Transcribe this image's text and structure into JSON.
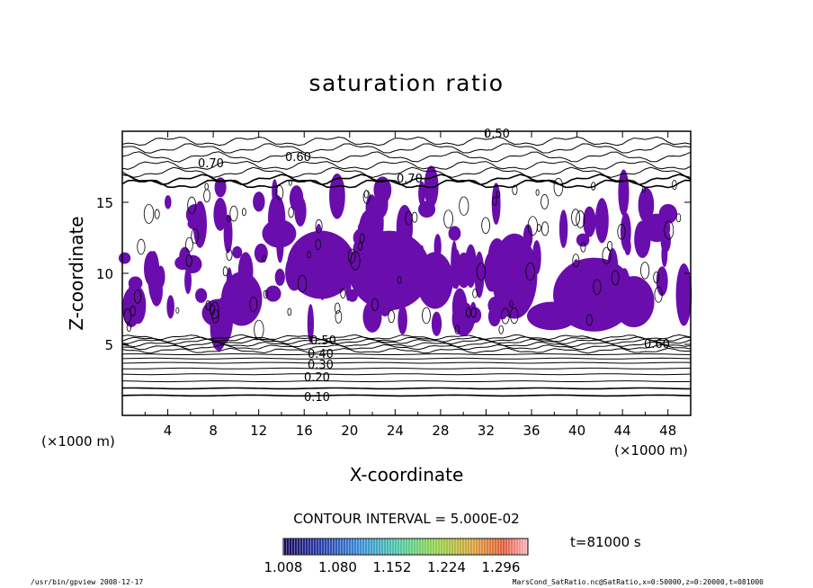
{
  "chart_data": {
    "type": "heatmap",
    "title": "saturation ratio",
    "xlabel": "X-coordinate",
    "ylabel": "Z-coordinate",
    "x_unit": "(×1000 m)",
    "y_unit": "(×1000 m)",
    "xlim": [
      0,
      50
    ],
    "ylim": [
      0,
      20
    ],
    "x_ticks": [
      "4",
      "8",
      "12",
      "16",
      "20",
      "24",
      "28",
      "32",
      "36",
      "40",
      "44",
      "48"
    ],
    "y_ticks": [
      "5",
      "10",
      "15"
    ],
    "contour_interval": "CONTOUR INTERVAL = 5.000E-02",
    "contour_labels": [
      "0.50",
      "0.60",
      "0.70",
      "0.70",
      "0.60",
      "0.50",
      "0.40",
      "0.30",
      "0.20",
      "0.10"
    ],
    "colorbar_ticks": [
      "1.008",
      "1.080",
      "1.152",
      "1.224",
      "1.296"
    ],
    "colorbar_range": [
      1.008,
      1.296
    ],
    "time_label": "t=81000 s",
    "fill_color": "#6a0dad",
    "grid": false
  },
  "footer": {
    "left": "/usr/bin/gpview  2008-12-17",
    "right": "MarsCond_SatRatio.nc@SatRatio,x=0:50000,z=0:20000,t=081000"
  }
}
